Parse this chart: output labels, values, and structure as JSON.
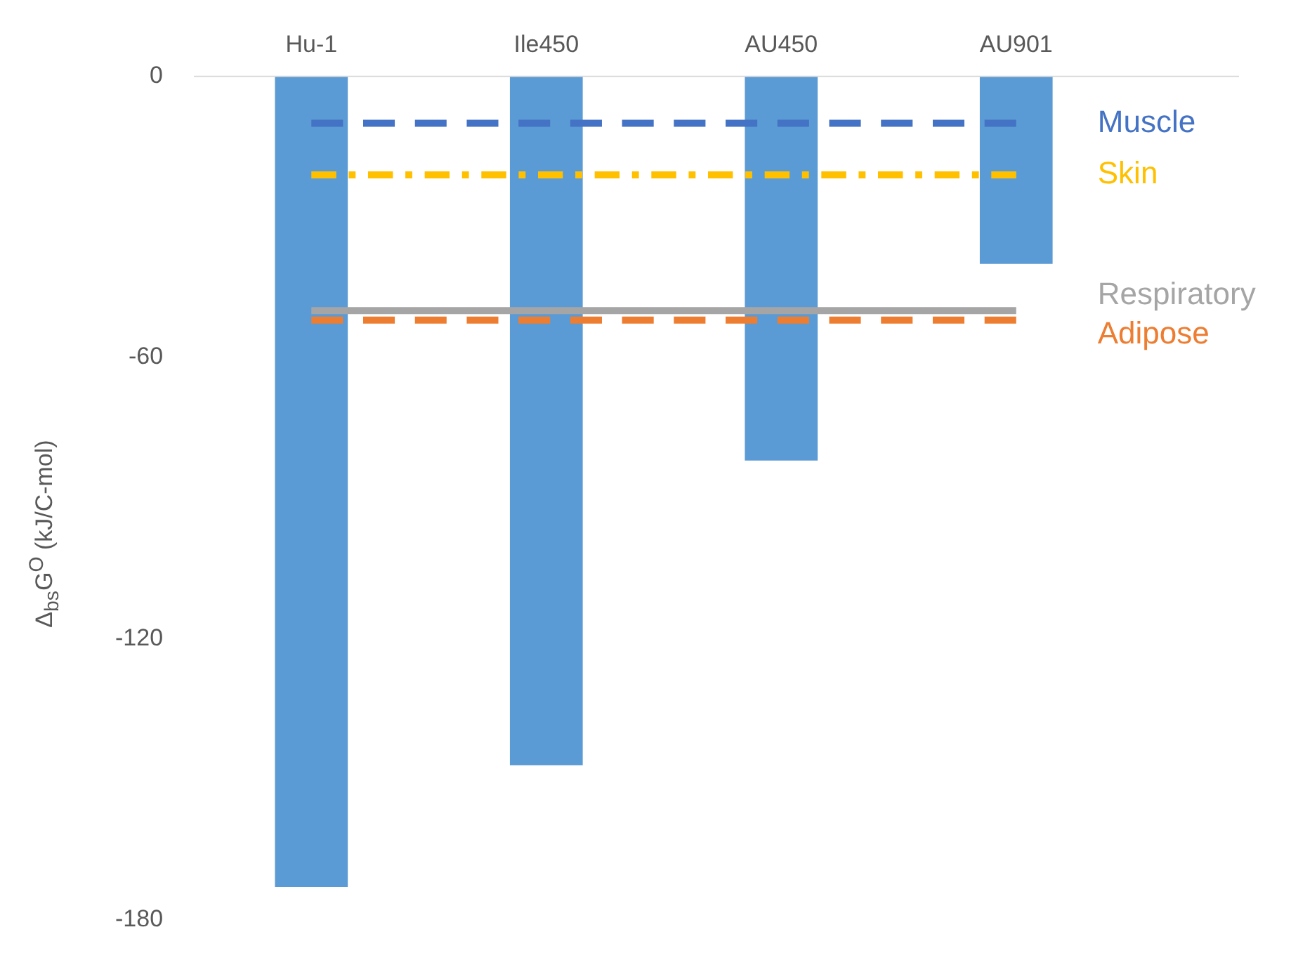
{
  "chart_data": {
    "type": "bar",
    "ylabel": "Δ$_{bs}$G$^{O}$ (kJ/C-mol)",
    "categories": [
      "Hu-1",
      "Ile450",
      "AU450",
      "AU901"
    ],
    "ylim": [
      -180,
      0
    ],
    "yticks": [
      0,
      -60,
      -120,
      -180
    ],
    "grid": false,
    "legend": false,
    "series": [
      {
        "color": "#5b9bd5",
        "values": [
          -173,
          -147,
          -82,
          -40
        ]
      },
      {
        "type": "line",
        "name": "Muscle",
        "color": "#4472c4",
        "line_style": "dashed",
        "values": [
          -10,
          -10,
          -10,
          -10
        ]
      },
      {
        "type": "line",
        "name": "Skin",
        "color": "#ffc000",
        "line_style": "dotted",
        "values": [
          -21,
          -21,
          -21,
          -21
        ]
      },
      {
        "type": "line",
        "name": "Respiratory",
        "color": "#a5a5a5",
        "line_style": "solid",
        "values": [
          -50,
          -50,
          -50,
          -50
        ]
      },
      {
        "type": "line",
        "name": "Adipose",
        "color": "#ed7d31",
        "line_style": "dashed",
        "values": [
          -52,
          -52,
          -52,
          -52
        ]
      }
    ]
  }
}
